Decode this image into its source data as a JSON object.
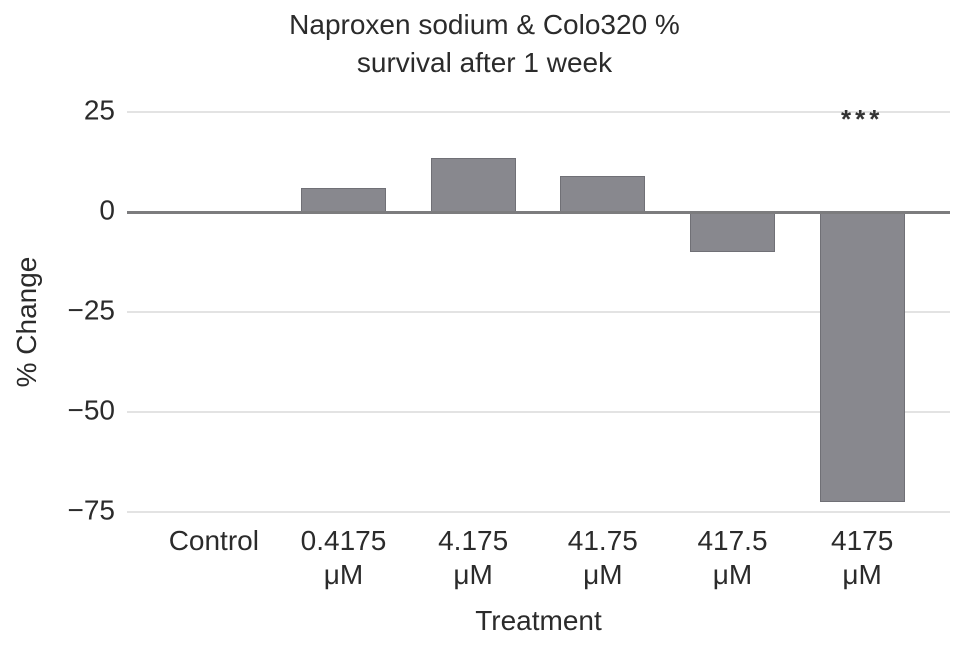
{
  "figure": {
    "title_lines": [
      "Naproxen sodium & Colo320 %",
      "survival after 1 week"
    ],
    "ylabel": "% Change",
    "xlabel": "Treatment"
  },
  "chart_data": {
    "type": "bar",
    "title": "Naproxen sodium & Colo320 % survival after 1 week",
    "xlabel": "Treatment",
    "ylabel": "% Change",
    "categories": [
      "Control",
      "0.4175 μM",
      "4.175 μM",
      "41.75 μM",
      "417.5 μM",
      "4175 μM"
    ],
    "category_label_lines": [
      [
        "Control"
      ],
      [
        "0.4175",
        "μM"
      ],
      [
        "4.175",
        "μM"
      ],
      [
        "41.75",
        "μM"
      ],
      [
        "417.5",
        "μM"
      ],
      [
        "4175",
        "μM"
      ]
    ],
    "values": [
      0,
      6,
      13.5,
      9,
      -10,
      -72.5
    ],
    "yticks": [
      25,
      0,
      -25,
      -50,
      -75
    ],
    "ytick_labels": [
      "25",
      "0",
      "−25",
      "−50",
      "−75"
    ],
    "ylim": [
      -80,
      30
    ],
    "grid": true,
    "legend": false,
    "bar_color": "#88888e",
    "zero_line_color": "#7c7c7e",
    "grid_color": "#e3e3e3",
    "text_color": "#2b2b2b",
    "annotations": [
      {
        "category_index": 5,
        "text": "***",
        "y": 23
      }
    ]
  }
}
